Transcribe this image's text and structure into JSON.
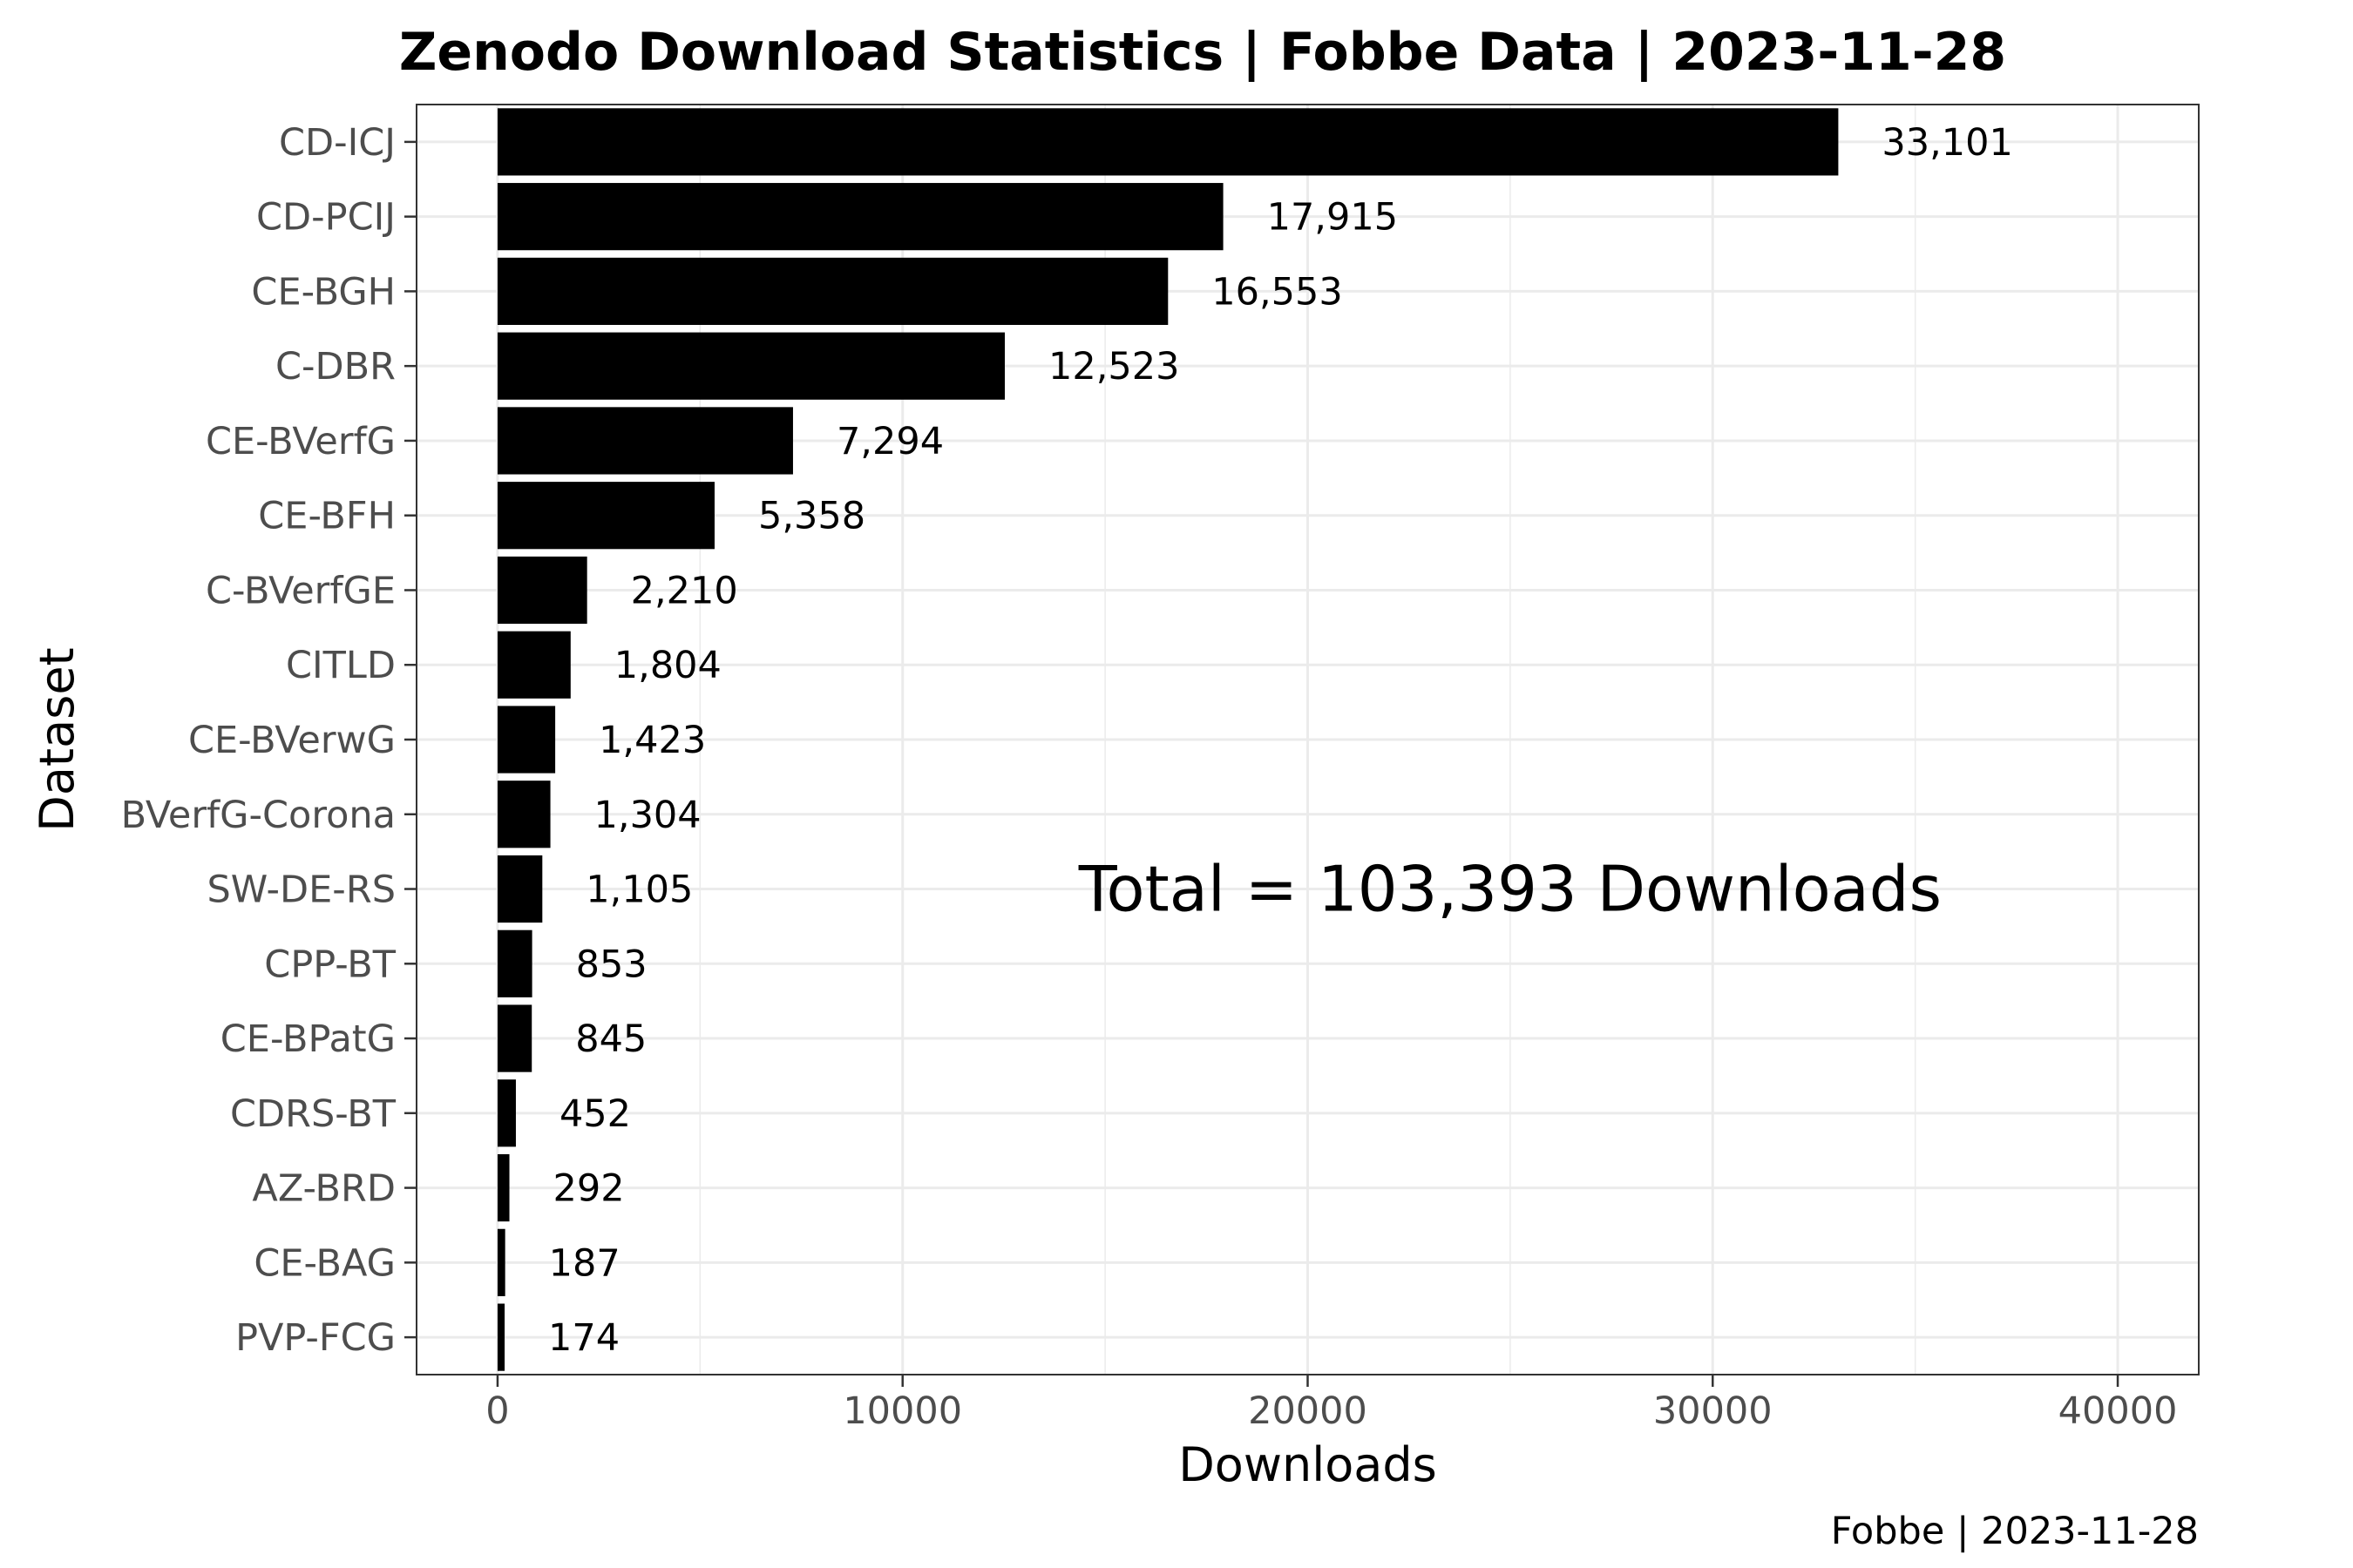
{
  "chart_data": {
    "type": "bar",
    "orientation": "horizontal",
    "title": "Zenodo Download Statistics | Fobbe Data | 2023-11-28",
    "xlabel": "Downloads",
    "ylabel": "Dataset",
    "xlim": [
      -2000,
      42000
    ],
    "xticks": [
      0,
      10000,
      20000,
      30000,
      40000
    ],
    "xtick_labels": [
      "0",
      "10000",
      "20000",
      "30000",
      "40000"
    ],
    "categories": [
      "CD-ICJ",
      "CD-PCIJ",
      "CE-BGH",
      "C-DBR",
      "CE-BVerfG",
      "CE-BFH",
      "C-BVerfGE",
      "CITLD",
      "CE-BVerwG",
      "BVerfG-Corona",
      "SW-DE-RS",
      "CPP-BT",
      "CE-BPatG",
      "CDRS-BT",
      "AZ-BRD",
      "CE-BAG",
      "PVP-FCG"
    ],
    "values": [
      33101,
      17915,
      16553,
      12523,
      7294,
      5358,
      2210,
      1804,
      1423,
      1304,
      1105,
      853,
      845,
      452,
      292,
      187,
      174
    ],
    "value_labels": [
      "33,101",
      "17,915",
      "16,553",
      "12,523",
      "7,294",
      "5,358",
      "2,210",
      "1,804",
      "1,423",
      "1,304",
      "1,105",
      "853",
      "845",
      "452",
      "292",
      "187",
      "174"
    ],
    "annotation": "Total = 103,393 Downloads",
    "caption": "Fobbe | 2023-11-28",
    "grid": true,
    "colors": {
      "bar": "#000000",
      "grid": "#ebebeb",
      "panel_border": "#333333",
      "tick_text": "#4d4d4d"
    }
  }
}
